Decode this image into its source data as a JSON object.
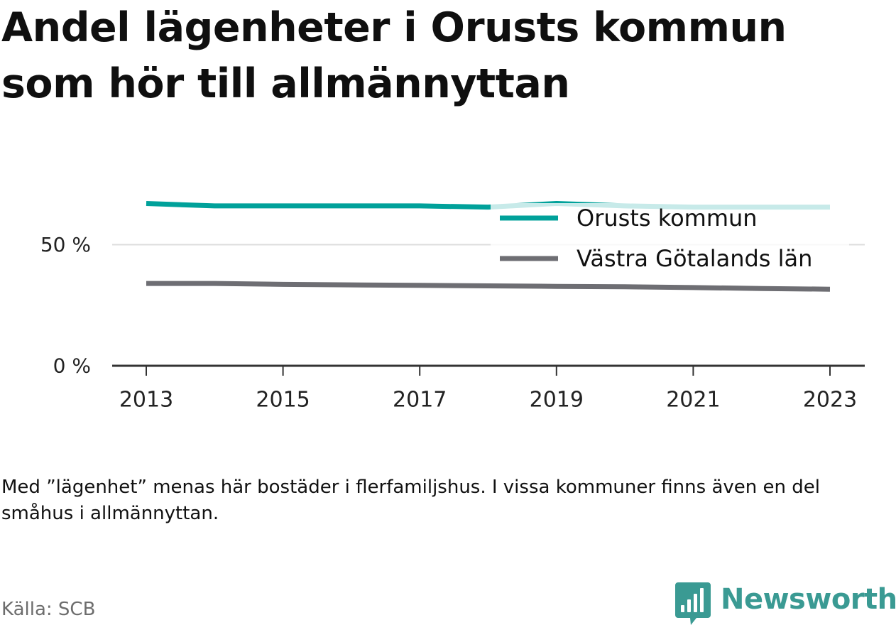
{
  "title": "Andel lägenheter i Orusts kommun som hör till allmännyttan",
  "note": "Med ”lägenhet” menas här bostäder i flerfamiljshus. I vissa kommuner finns även en del småhus i allmännyttan.",
  "source": "Källa: SCB",
  "brand": {
    "name": "Newsworthy",
    "icon": "newsworthy-logo-icon",
    "color": "#3a9a93"
  },
  "chart_data": {
    "type": "line",
    "x": [
      2013,
      2014,
      2015,
      2016,
      2017,
      2018,
      2019,
      2020,
      2021,
      2022,
      2023
    ],
    "series": [
      {
        "name": "Orusts kommun",
        "color": "#00a19a",
        "values": [
          67,
          66,
          66,
          66,
          66,
          65.5,
          67,
          66,
          65.5,
          65.5,
          65.5
        ]
      },
      {
        "name": "Västra Götalands län",
        "color": "#6e6e73",
        "values": [
          34,
          34,
          33.6,
          33.4,
          33.2,
          33,
          32.8,
          32.6,
          32.3,
          31.9,
          31.6
        ]
      }
    ],
    "y_ticks": [
      {
        "value": 0,
        "label": "0 %"
      },
      {
        "value": 50,
        "label": "50 %"
      }
    ],
    "x_ticks": [
      {
        "value": 2013,
        "label": "2013"
      },
      {
        "value": 2015,
        "label": "2015"
      },
      {
        "value": 2017,
        "label": "2017"
      },
      {
        "value": 2019,
        "label": "2019"
      },
      {
        "value": 2021,
        "label": "2021"
      },
      {
        "value": 2023,
        "label": "2023"
      }
    ],
    "ylim": [
      0,
      100
    ],
    "xlim": [
      2012.75,
      2023.25
    ],
    "grid": "horizontal",
    "legend_position": "top-right",
    "gridline_color": "#dddddd",
    "axis_color": "#333333"
  }
}
